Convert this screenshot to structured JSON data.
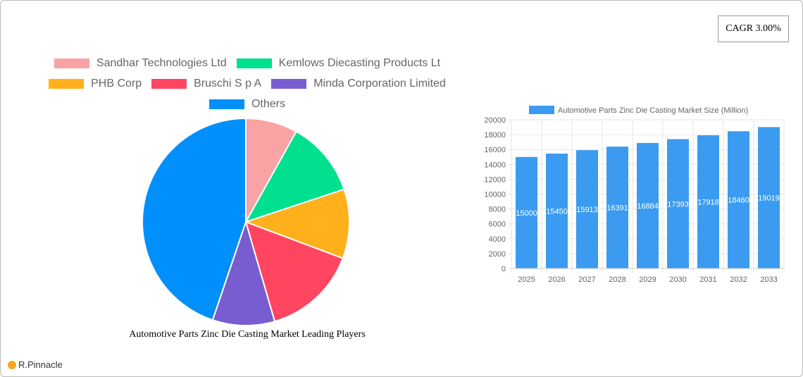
{
  "cagr_label": "CAGR 3.00%",
  "brand": "R.Pinnacle",
  "chart_data": [
    {
      "type": "pie",
      "title": "Automotive Parts Zinc Die Casting Market Leading Players",
      "legend_position": "top",
      "slices": [
        {
          "label": "Sandhar Technologies Ltd",
          "value": 8.1,
          "color": "#f9a3a4"
        },
        {
          "label": "Kemlows Diecasting Products Lt",
          "value": 11.8,
          "color": "#00e08e"
        },
        {
          "label": "PHB Corp",
          "value": 10.8,
          "color": "#ffb01a"
        },
        {
          "label": "Bruschi S p A",
          "value": 14.8,
          "color": "#ff4560"
        },
        {
          "label": "Minda Corporation Limited",
          "value": 9.7,
          "color": "#775dd0"
        },
        {
          "label": "Others",
          "value": 44.8,
          "color": "#008ffb"
        }
      ]
    },
    {
      "type": "bar",
      "legend": "Automotive Parts Zinc Die Casting Market Size (Million)",
      "legend_position": "top",
      "categories": [
        "2025",
        "2026",
        "2027",
        "2028",
        "2029",
        "2030",
        "2031",
        "2032",
        "2033"
      ],
      "values": [
        15000,
        15450,
        15913,
        16391,
        16884,
        17393,
        17918,
        18460,
        19019
      ],
      "ylim": [
        0,
        20000
      ],
      "yticks": [
        0,
        2000,
        4000,
        6000,
        8000,
        10000,
        12000,
        14000,
        16000,
        18000,
        20000
      ],
      "grid": true,
      "color": "#3a9bf0"
    }
  ]
}
